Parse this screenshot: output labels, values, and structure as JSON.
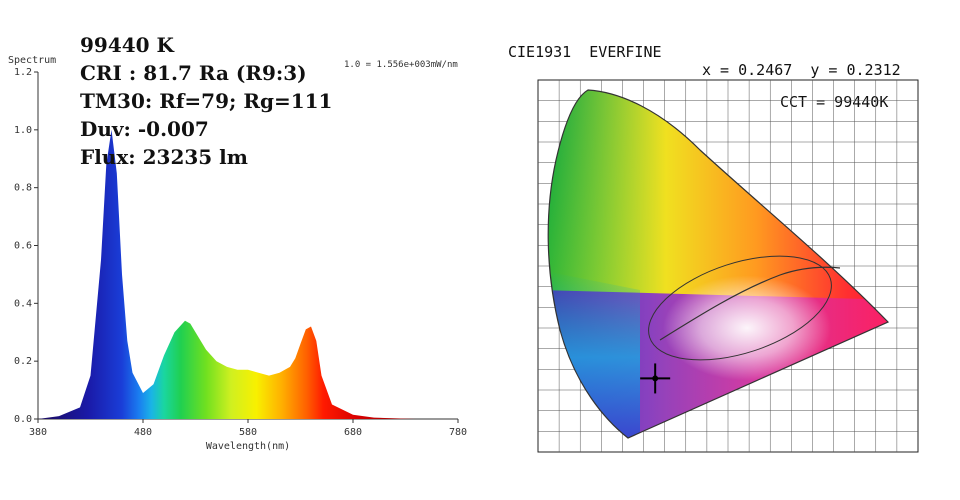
{
  "colors": {
    "background": "#ffffff",
    "text": "#111111",
    "axis": "#333333",
    "grid": "#444444",
    "marker": "#000000"
  },
  "chart_data": [
    {
      "type": "line",
      "ylabel_top": "Spectrum",
      "xlabel": "Wavelength(nm)",
      "scale_note": "1.0 = 1.556e+003mW/nm",
      "xlim": [
        380,
        780
      ],
      "ylim": [
        0,
        1.2
      ],
      "x_ticks": [
        "380",
        "480",
        "580",
        "680",
        "780"
      ],
      "y_ticks": [
        "0.0",
        "0.2",
        "0.4",
        "0.6",
        "0.8",
        "1.0",
        "1.2"
      ],
      "series": [
        {
          "x": [
            380,
            400,
            420,
            430,
            440,
            445,
            450,
            455,
            460,
            465,
            470,
            480,
            490,
            500,
            510,
            520,
            525,
            530,
            540,
            550,
            560,
            570,
            580,
            590,
            600,
            610,
            615,
            620,
            625,
            630,
            635,
            640,
            645,
            650,
            660,
            680,
            700,
            740,
            780
          ],
          "values": [
            0.0,
            0.01,
            0.04,
            0.15,
            0.55,
            0.88,
            1.0,
            0.85,
            0.5,
            0.27,
            0.16,
            0.09,
            0.12,
            0.22,
            0.3,
            0.34,
            0.33,
            0.3,
            0.24,
            0.2,
            0.18,
            0.17,
            0.17,
            0.16,
            0.15,
            0.16,
            0.17,
            0.18,
            0.21,
            0.26,
            0.31,
            0.32,
            0.27,
            0.15,
            0.05,
            0.015,
            0.005,
            0.0,
            0.0
          ]
        }
      ],
      "grid": false
    },
    {
      "type": "scatter",
      "title": "CIE1931  EVERFINE",
      "point_label": "x = 0.2467  y = 0.2312",
      "cct_label": "CCT = 99440K",
      "points": [
        {
          "x": 0.2467,
          "y": 0.2312
        }
      ],
      "xlim": [
        0.0,
        0.8
      ],
      "ylim": [
        0.0,
        0.9
      ]
    }
  ],
  "metrics": {
    "cct": "99440 K",
    "cri": "CRI : 81.7 Ra (R9:3)",
    "tm30": "TM30: Rf=79; Rg=111",
    "duv": "Duv: -0.007",
    "flux": "Flux: 23235 lm"
  }
}
